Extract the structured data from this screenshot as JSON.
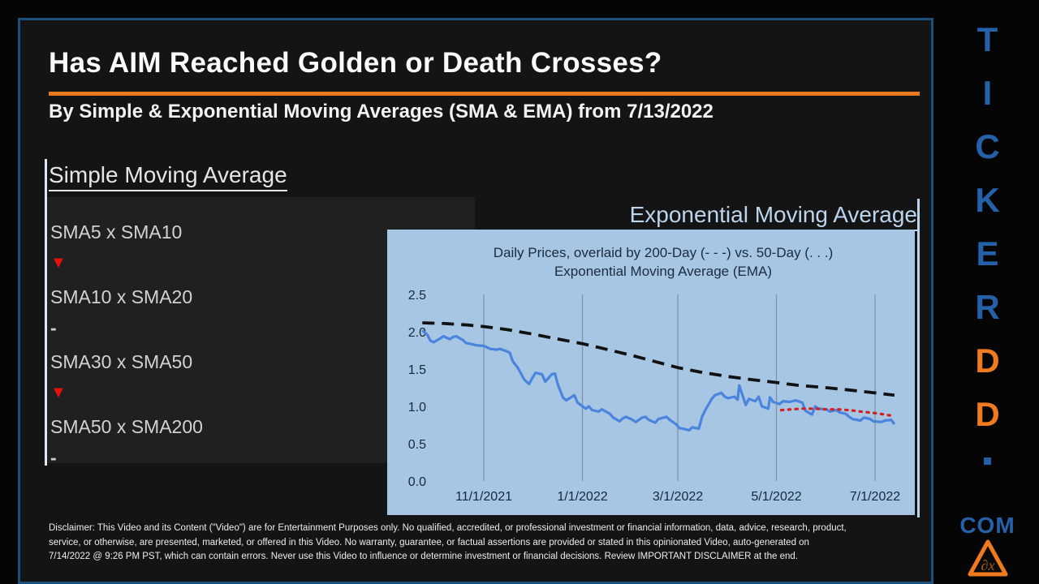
{
  "slide": {
    "title": "Has AIM Reached Golden or Death Crosses?",
    "subtitle": "By Simple & Exponential Moving Averages (SMA & EMA) from 7/13/2022"
  },
  "sma_section": {
    "heading": "Simple Moving Average",
    "down_glyph": "▼",
    "none_glyph": "-",
    "rows": [
      {
        "label": "SMA5 x SMA10",
        "signal": "down"
      },
      {
        "label": "SMA10 x SMA20",
        "signal": "none"
      },
      {
        "label": "SMA30 x SMA50",
        "signal": "down"
      },
      {
        "label": "SMA50 x SMA200",
        "signal": "none"
      }
    ]
  },
  "ema_section": {
    "heading": "Exponential Moving Average"
  },
  "chart_data": {
    "type": "line",
    "title": "Daily Prices, overlaid by 200-Day (- - -) vs. 50-Day (. . .)",
    "subtitle": "Exponential Moving Average (EMA)",
    "background": "#a6c6e4",
    "grid": "vertical",
    "ylim": [
      0.0,
      2.5
    ],
    "yticks": [
      0.0,
      0.5,
      1.0,
      1.5,
      2.0,
      2.5
    ],
    "xticks": [
      {
        "label": "11/1/2021",
        "date": "2021-11-01"
      },
      {
        "label": "1/1/2022",
        "date": "2022-01-01"
      },
      {
        "label": "3/1/2022",
        "date": "2022-03-01"
      },
      {
        "label": "5/1/2022",
        "date": "2022-05-01"
      },
      {
        "label": "7/1/2022",
        "date": "2022-07-01"
      }
    ],
    "series": [
      {
        "name": "Daily Price",
        "style": "solid",
        "color": "#4b84dd",
        "points": [
          [
            "2021-09-24",
            2.02
          ],
          [
            "2021-09-27",
            1.96
          ],
          [
            "2021-09-29",
            1.88
          ],
          [
            "2021-10-01",
            1.86
          ],
          [
            "2021-10-05",
            1.91
          ],
          [
            "2021-10-07",
            1.94
          ],
          [
            "2021-10-11",
            1.9
          ],
          [
            "2021-10-13",
            1.93
          ],
          [
            "2021-10-15",
            1.94
          ],
          [
            "2021-10-19",
            1.89
          ],
          [
            "2021-10-21",
            1.85
          ],
          [
            "2021-10-25",
            1.83
          ],
          [
            "2021-10-27",
            1.82
          ],
          [
            "2021-11-01",
            1.81
          ],
          [
            "2021-11-03",
            1.79
          ],
          [
            "2021-11-05",
            1.77
          ],
          [
            "2021-11-09",
            1.76
          ],
          [
            "2021-11-11",
            1.77
          ],
          [
            "2021-11-15",
            1.74
          ],
          [
            "2021-11-17",
            1.72
          ],
          [
            "2021-11-19",
            1.6
          ],
          [
            "2021-11-22",
            1.52
          ],
          [
            "2021-11-24",
            1.44
          ],
          [
            "2021-11-26",
            1.36
          ],
          [
            "2021-11-29",
            1.3
          ],
          [
            "2021-12-01",
            1.38
          ],
          [
            "2021-12-03",
            1.45
          ],
          [
            "2021-12-07",
            1.43
          ],
          [
            "2021-12-09",
            1.33
          ],
          [
            "2021-12-13",
            1.43
          ],
          [
            "2021-12-15",
            1.44
          ],
          [
            "2021-12-17",
            1.28
          ],
          [
            "2021-12-20",
            1.12
          ],
          [
            "2021-12-22",
            1.08
          ],
          [
            "2021-12-27",
            1.15
          ],
          [
            "2021-12-29",
            1.05
          ],
          [
            "2022-01-03",
            0.97
          ],
          [
            "2022-01-05",
            1.0
          ],
          [
            "2022-01-07",
            0.95
          ],
          [
            "2022-01-11",
            0.93
          ],
          [
            "2022-01-13",
            0.96
          ],
          [
            "2022-01-18",
            0.9
          ],
          [
            "2022-01-20",
            0.85
          ],
          [
            "2022-01-24",
            0.8
          ],
          [
            "2022-01-26",
            0.84
          ],
          [
            "2022-01-28",
            0.86
          ],
          [
            "2022-02-01",
            0.82
          ],
          [
            "2022-02-03",
            0.79
          ],
          [
            "2022-02-07",
            0.85
          ],
          [
            "2022-02-09",
            0.86
          ],
          [
            "2022-02-11",
            0.82
          ],
          [
            "2022-02-15",
            0.78
          ],
          [
            "2022-02-17",
            0.83
          ],
          [
            "2022-02-22",
            0.86
          ],
          [
            "2022-02-24",
            0.82
          ],
          [
            "2022-02-28",
            0.76
          ],
          [
            "2022-03-02",
            0.71
          ],
          [
            "2022-03-04",
            0.7
          ],
          [
            "2022-03-08",
            0.68
          ],
          [
            "2022-03-10",
            0.72
          ],
          [
            "2022-03-14",
            0.7
          ],
          [
            "2022-03-16",
            0.86
          ],
          [
            "2022-03-18",
            0.95
          ],
          [
            "2022-03-22",
            1.1
          ],
          [
            "2022-03-24",
            1.15
          ],
          [
            "2022-03-28",
            1.18
          ],
          [
            "2022-03-30",
            1.13
          ],
          [
            "2022-04-01",
            1.11
          ],
          [
            "2022-04-05",
            1.13
          ],
          [
            "2022-04-07",
            1.09
          ],
          [
            "2022-04-08",
            1.28
          ],
          [
            "2022-04-12",
            1.02
          ],
          [
            "2022-04-14",
            1.1
          ],
          [
            "2022-04-18",
            1.07
          ],
          [
            "2022-04-20",
            1.13
          ],
          [
            "2022-04-22",
            1.0
          ],
          [
            "2022-04-26",
            0.97
          ],
          [
            "2022-04-27",
            1.12
          ],
          [
            "2022-04-29",
            1.06
          ],
          [
            "2022-05-03",
            1.03
          ],
          [
            "2022-05-05",
            1.07
          ],
          [
            "2022-05-09",
            1.06
          ],
          [
            "2022-05-11",
            1.07
          ],
          [
            "2022-05-13",
            1.08
          ],
          [
            "2022-05-17",
            1.05
          ],
          [
            "2022-05-19",
            0.94
          ],
          [
            "2022-05-23",
            0.89
          ],
          [
            "2022-05-25",
            1.0
          ],
          [
            "2022-05-27",
            0.97
          ],
          [
            "2022-06-01",
            0.96
          ],
          [
            "2022-06-03",
            0.93
          ],
          [
            "2022-06-07",
            0.95
          ],
          [
            "2022-06-09",
            0.92
          ],
          [
            "2022-06-13",
            0.9
          ],
          [
            "2022-06-15",
            0.86
          ],
          [
            "2022-06-17",
            0.83
          ],
          [
            "2022-06-22",
            0.81
          ],
          [
            "2022-06-24",
            0.85
          ],
          [
            "2022-06-28",
            0.83
          ],
          [
            "2022-06-30",
            0.8
          ],
          [
            "2022-07-05",
            0.79
          ],
          [
            "2022-07-07",
            0.81
          ],
          [
            "2022-07-11",
            0.82
          ],
          [
            "2022-07-13",
            0.76
          ]
        ]
      },
      {
        "name": "200-Day EMA",
        "style": "dashed",
        "color": "#111111",
        "points": [
          [
            "2021-09-24",
            2.12
          ],
          [
            "2021-10-08",
            2.11
          ],
          [
            "2021-10-22",
            2.09
          ],
          [
            "2021-11-01",
            2.07
          ],
          [
            "2021-11-15",
            2.03
          ],
          [
            "2021-12-01",
            1.97
          ],
          [
            "2021-12-15",
            1.91
          ],
          [
            "2022-01-01",
            1.84
          ],
          [
            "2022-01-15",
            1.77
          ],
          [
            "2022-02-01",
            1.68
          ],
          [
            "2022-02-15",
            1.6
          ],
          [
            "2022-03-01",
            1.52
          ],
          [
            "2022-03-15",
            1.46
          ],
          [
            "2022-04-01",
            1.4
          ],
          [
            "2022-04-15",
            1.36
          ],
          [
            "2022-05-01",
            1.32
          ],
          [
            "2022-05-15",
            1.28
          ],
          [
            "2022-06-01",
            1.25
          ],
          [
            "2022-06-15",
            1.22
          ],
          [
            "2022-07-01",
            1.18
          ],
          [
            "2022-07-13",
            1.15
          ]
        ]
      },
      {
        "name": "50-Day EMA",
        "style": "dotted",
        "color": "#d42020",
        "points": [
          [
            "2022-05-04",
            0.95
          ],
          [
            "2022-05-10",
            0.96
          ],
          [
            "2022-05-17",
            0.97
          ],
          [
            "2022-05-24",
            0.97
          ],
          [
            "2022-06-01",
            0.96
          ],
          [
            "2022-06-08",
            0.96
          ],
          [
            "2022-06-15",
            0.95
          ],
          [
            "2022-06-22",
            0.93
          ],
          [
            "2022-07-01",
            0.91
          ],
          [
            "2022-07-07",
            0.89
          ],
          [
            "2022-07-13",
            0.87
          ]
        ]
      }
    ]
  },
  "watermark": {
    "letters": [
      "T",
      "I",
      "C",
      "K",
      "E",
      "R",
      "D",
      "D",
      "."
    ],
    "letter_colors": [
      "blue",
      "blue",
      "blue",
      "blue",
      "blue",
      "blue",
      "orange",
      "orange",
      "blue"
    ],
    "tld": "COM"
  },
  "disclaimer_lines": [
    "Disclaimer: This Video and its Content (\"Video\") are for Entertainment Purposes only. No qualified, accredited, or professional investment or financial information, data, advice, research, product,",
    "service, or otherwise, are presented, marketed, or offered in this Video. No warranty, guarantee, or factual assertions are provided or stated in this opinionated Video, auto-generated on",
    "7/14/2022 @ 9:26 PM PST, which can contain errors. Never use this Video to influence or determine investment or financial decisions. Review IMPORTANT DISCLAIMER at the end."
  ],
  "colors": {
    "accent_orange": "#e87a1e",
    "watermark_blue": "#2561a8",
    "panel_border": "#1d4f7c",
    "signal_red": "#e8100c",
    "ema_heading_blue": "#bcd5ee",
    "chart_background": "#a6c6e4",
    "price_line_blue": "#4b84dd"
  }
}
